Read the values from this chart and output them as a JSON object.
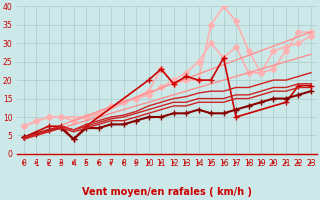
{
  "xlabel": "Vent moyen/en rafales ( km/h )",
  "background_color": "#cce8e8",
  "grid_color": "#aacccc",
  "xlim": [
    -0.5,
    23.5
  ],
  "ylim": [
    0,
    40
  ],
  "xticks": [
    0,
    1,
    2,
    3,
    4,
    5,
    6,
    7,
    8,
    9,
    10,
    11,
    12,
    13,
    14,
    15,
    16,
    17,
    18,
    19,
    20,
    21,
    22,
    23
  ],
  "yticks": [
    0,
    5,
    10,
    15,
    20,
    25,
    30,
    35,
    40
  ],
  "lines": [
    {
      "x": [
        0,
        2,
        3,
        5,
        6,
        10,
        11,
        12,
        13,
        14,
        15,
        16,
        17,
        18,
        19,
        20,
        21,
        22,
        23
      ],
      "y": [
        7.5,
        10,
        10,
        10,
        10.5,
        17,
        23,
        19,
        20,
        20,
        35,
        40,
        36,
        28,
        22,
        23,
        28,
        33,
        33
      ],
      "color": "#ffb0b0",
      "lw": 1.2,
      "marker": "D",
      "ms": 3
    },
    {
      "x": [
        0,
        1,
        2,
        3,
        4,
        5,
        6,
        7,
        8,
        9,
        10,
        11,
        12,
        13,
        14,
        15,
        16,
        17,
        18,
        19,
        20,
        21,
        22,
        23
      ],
      "y": [
        7.5,
        9,
        10,
        10,
        9,
        10,
        11,
        13,
        14,
        15,
        16,
        18,
        20,
        22,
        25,
        30,
        26,
        29,
        22,
        22,
        28,
        29,
        30,
        32
      ],
      "color": "#ffb0b0",
      "lw": 1.2,
      "marker": "D",
      "ms": 3
    },
    {
      "x": [
        0,
        23
      ],
      "y": [
        4,
        27
      ],
      "color": "#ff9090",
      "lw": 1.0,
      "marker": null,
      "ms": 0
    },
    {
      "x": [
        0,
        23
      ],
      "y": [
        4,
        33
      ],
      "color": "#ff9090",
      "lw": 1.0,
      "marker": null,
      "ms": 0
    },
    {
      "x": [
        0,
        2,
        3,
        4,
        5,
        10,
        11,
        12,
        13,
        14,
        15,
        16,
        17,
        21,
        22,
        23
      ],
      "y": [
        4.5,
        7.5,
        7.5,
        4,
        7.5,
        20,
        23,
        19,
        21,
        20,
        20,
        26,
        10,
        14,
        18.5,
        18.5
      ],
      "color": "#cc0000",
      "lw": 1.2,
      "marker": "+",
      "ms": 5
    },
    {
      "x": [
        0,
        1,
        2,
        3,
        4,
        5,
        6,
        7,
        8,
        9,
        10,
        11,
        12,
        13,
        14,
        15,
        16,
        17,
        18,
        19,
        20,
        21,
        22,
        23
      ],
      "y": [
        4.5,
        5.5,
        6.5,
        7,
        4,
        7,
        7,
        8,
        8,
        9,
        10,
        10,
        11,
        11,
        12,
        11,
        11,
        12,
        13,
        14,
        15,
        15,
        16,
        17
      ],
      "color": "#880000",
      "lw": 1.5,
      "marker": "+",
      "ms": 4
    },
    {
      "x": [
        0,
        1,
        2,
        3,
        4,
        5,
        6,
        7,
        8,
        9,
        10,
        11,
        12,
        13,
        14,
        15,
        16,
        17,
        18,
        19,
        20,
        21,
        22,
        23
      ],
      "y": [
        4,
        5,
        6,
        7,
        6,
        7,
        8,
        9,
        9,
        10,
        11,
        12,
        13,
        13,
        14,
        14,
        14,
        15,
        15,
        16,
        17,
        17,
        18,
        18
      ],
      "color": "#cc2222",
      "lw": 1.0,
      "marker": null,
      "ms": 0
    },
    {
      "x": [
        0,
        1,
        2,
        3,
        4,
        5,
        6,
        7,
        8,
        9,
        10,
        11,
        12,
        13,
        14,
        15,
        16,
        17,
        18,
        19,
        20,
        21,
        22,
        23
      ],
      "y": [
        4,
        5.5,
        6.5,
        7.5,
        6.5,
        7.5,
        8.5,
        9.5,
        10,
        11,
        12,
        13,
        14,
        14,
        15,
        15,
        15,
        16,
        16,
        17,
        18,
        18,
        19,
        19
      ],
      "color": "#cc2222",
      "lw": 1.0,
      "marker": null,
      "ms": 0
    },
    {
      "x": [
        0,
        1,
        2,
        3,
        4,
        5,
        6,
        7,
        8,
        9,
        10,
        11,
        12,
        13,
        14,
        15,
        16,
        17,
        18,
        19,
        20,
        21,
        22,
        23
      ],
      "y": [
        4.5,
        5.5,
        6.5,
        7.5,
        6.5,
        8,
        9,
        10,
        10.5,
        11.5,
        13,
        14,
        15,
        15.5,
        16.5,
        17,
        17,
        18,
        18,
        19,
        20,
        20,
        21,
        22
      ],
      "color": "#cc2222",
      "lw": 1.0,
      "marker": null,
      "ms": 0
    }
  ],
  "xlabel_color": "#cc0000",
  "xlabel_fontsize": 7,
  "tick_fontsize": 5.5,
  "tick_color": "#cc0000",
  "spine_color": "#cc0000",
  "hline_color": "#cc0000"
}
